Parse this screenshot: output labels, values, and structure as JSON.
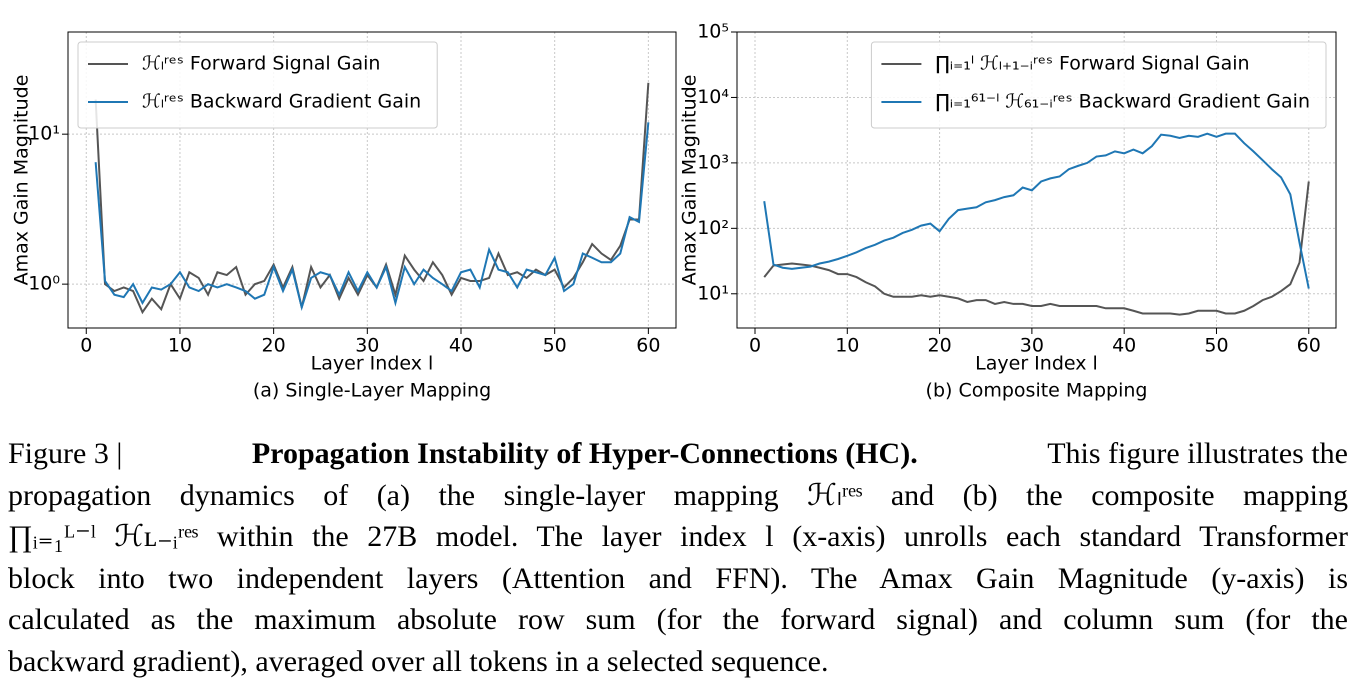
{
  "chart_data": [
    {
      "type": "line",
      "subcaption": "(a) Single-Layer Mapping",
      "xlabel": "Layer Index l",
      "ylabel": "Amax Gain Magnitude",
      "x": [
        1,
        2,
        3,
        4,
        5,
        6,
        7,
        8,
        9,
        10,
        11,
        12,
        13,
        14,
        15,
        16,
        17,
        18,
        19,
        20,
        21,
        22,
        23,
        24,
        25,
        26,
        27,
        28,
        29,
        30,
        31,
        32,
        33,
        34,
        35,
        36,
        37,
        38,
        39,
        40,
        41,
        42,
        43,
        44,
        45,
        46,
        47,
        48,
        49,
        50,
        51,
        52,
        53,
        54,
        55,
        56,
        57,
        58,
        59,
        60
      ],
      "xlim": [
        -1.95,
        62.95
      ],
      "xticks": [
        0,
        10,
        20,
        30,
        40,
        50,
        60
      ],
      "ylim": [
        0.51,
        48
      ],
      "yticks": [
        {
          "value": 1,
          "label": "10⁰"
        },
        {
          "value": 10,
          "label": "10¹"
        }
      ],
      "yscale": "log",
      "grid": true,
      "legend": "upper left",
      "series": [
        {
          "name": "ℋₗʳᵉˢ Forward Signal Gain",
          "color": "#555555",
          "values": [
            17,
            1.0,
            0.9,
            0.95,
            0.9,
            0.65,
            0.8,
            0.68,
            1.0,
            0.8,
            1.2,
            1.1,
            0.85,
            1.2,
            1.15,
            1.3,
            0.85,
            1.0,
            1.05,
            1.35,
            0.95,
            1.3,
            0.7,
            1.3,
            0.95,
            1.15,
            0.8,
            1.1,
            0.85,
            1.15,
            0.95,
            1.35,
            0.85,
            1.55,
            1.25,
            1.05,
            1.4,
            1.15,
            0.85,
            1.1,
            1.05,
            1.05,
            1.1,
            1.6,
            1.15,
            1.2,
            1.1,
            1.25,
            1.15,
            1.25,
            0.95,
            1.1,
            1.4,
            1.85,
            1.6,
            1.45,
            1.8,
            2.7,
            2.7,
            22
          ]
        },
        {
          "name": "ℋₗʳᵉˢ Backward Gradient Gain",
          "color": "#1f77b4",
          "values": [
            6.5,
            1.05,
            0.85,
            0.82,
            1.0,
            0.75,
            0.95,
            0.92,
            1.0,
            1.2,
            0.95,
            0.9,
            1.0,
            0.95,
            1.0,
            0.95,
            0.9,
            0.8,
            0.85,
            1.3,
            0.9,
            1.25,
            0.7,
            1.1,
            1.2,
            1.15,
            0.85,
            1.2,
            0.9,
            1.2,
            0.95,
            1.3,
            0.75,
            1.3,
            1.0,
            1.25,
            1.1,
            1.0,
            0.9,
            1.2,
            1.25,
            0.95,
            1.7,
            1.25,
            1.2,
            0.95,
            1.25,
            1.2,
            1.15,
            1.5,
            0.9,
            1.0,
            1.6,
            1.5,
            1.4,
            1.4,
            1.6,
            2.8,
            2.6,
            12
          ]
        }
      ]
    },
    {
      "type": "line",
      "subcaption": "(b) Composite Mapping",
      "xlabel": "Layer Index l",
      "ylabel": "Amax Gain Magnitude",
      "x": [
        1,
        2,
        3,
        4,
        5,
        6,
        7,
        8,
        9,
        10,
        11,
        12,
        13,
        14,
        15,
        16,
        17,
        18,
        19,
        20,
        21,
        22,
        23,
        24,
        25,
        26,
        27,
        28,
        29,
        30,
        31,
        32,
        33,
        34,
        35,
        36,
        37,
        38,
        39,
        40,
        41,
        42,
        43,
        44,
        45,
        46,
        47,
        48,
        49,
        50,
        51,
        52,
        53,
        54,
        55,
        56,
        57,
        58,
        59,
        60
      ],
      "xlim": [
        -1.95,
        62.95
      ],
      "xticks": [
        0,
        10,
        20,
        30,
        40,
        50,
        60
      ],
      "ylim": [
        3,
        100000
      ],
      "yticks": [
        {
          "value": 10,
          "label": "10¹"
        },
        {
          "value": 100,
          "label": "10²"
        },
        {
          "value": 1000,
          "label": "10³"
        },
        {
          "value": 10000,
          "label": "10⁴"
        },
        {
          "value": 100000,
          "label": "10⁵"
        }
      ],
      "yscale": "log",
      "grid": true,
      "legend": "upper right",
      "series": [
        {
          "name": "∏ᵢ₌₁ˡ ℋₗ₊₁₋ᵢʳᵉˢ Forward Signal Gain",
          "color": "#555555",
          "values": [
            18,
            27,
            28,
            29,
            28,
            27,
            25,
            23,
            20,
            20,
            18,
            15,
            13,
            10,
            9,
            9,
            9,
            9.5,
            9,
            9.5,
            9,
            8.5,
            7.5,
            8,
            8,
            7,
            7.5,
            7,
            7,
            6.5,
            6.5,
            7,
            6.5,
            6.5,
            6.5,
            6.5,
            6.5,
            6,
            6,
            6,
            5.5,
            5,
            5,
            5,
            5,
            4.8,
            5,
            5.5,
            5.5,
            5.5,
            5,
            5,
            5.5,
            6.5,
            8,
            9,
            11,
            14,
            30,
            520
          ]
        },
        {
          "name": "∏ᵢ₌₁⁶¹⁻ˡ ℋ₆₁₋ᵢʳᵉˢ Backward Gradient Gain",
          "color": "#1f77b4",
          "values": [
            260,
            28,
            25,
            24,
            25,
            26,
            29,
            31,
            34,
            38,
            43,
            50,
            56,
            65,
            72,
            85,
            95,
            110,
            118,
            90,
            140,
            190,
            200,
            210,
            250,
            270,
            300,
            320,
            420,
            380,
            520,
            580,
            620,
            800,
            900,
            1000,
            1250,
            1300,
            1500,
            1400,
            1600,
            1400,
            1800,
            2700,
            2600,
            2400,
            2600,
            2500,
            2800,
            2500,
            2800,
            2800,
            2000,
            1500,
            1100,
            800,
            600,
            330,
            60,
            12
          ]
        }
      ]
    }
  ],
  "caption": {
    "label": "Figure 3 |",
    "title": "Propagation Instability of Hyper-Connections (HC).",
    "lines": [
      "This figure illustrates the",
      "propagation dynamics of (a) the single-layer mapping ℋₗʳᵉˢ and (b) the composite mapping",
      "∏ᵢ₌₁ᴸ⁻ˡ ℋʟ₋ᵢʳᵉˢ within the 27B model. The layer index l (x-axis) unrolls each standard Transformer",
      "block into two independent layers (Attention and FFN). The Amax Gain Magnitude (y-axis) is",
      "calculated as the maximum absolute row sum (for the forward signal) and column sum (for the",
      "backward gradient), averaged over all tokens in a selected sequence."
    ]
  }
}
